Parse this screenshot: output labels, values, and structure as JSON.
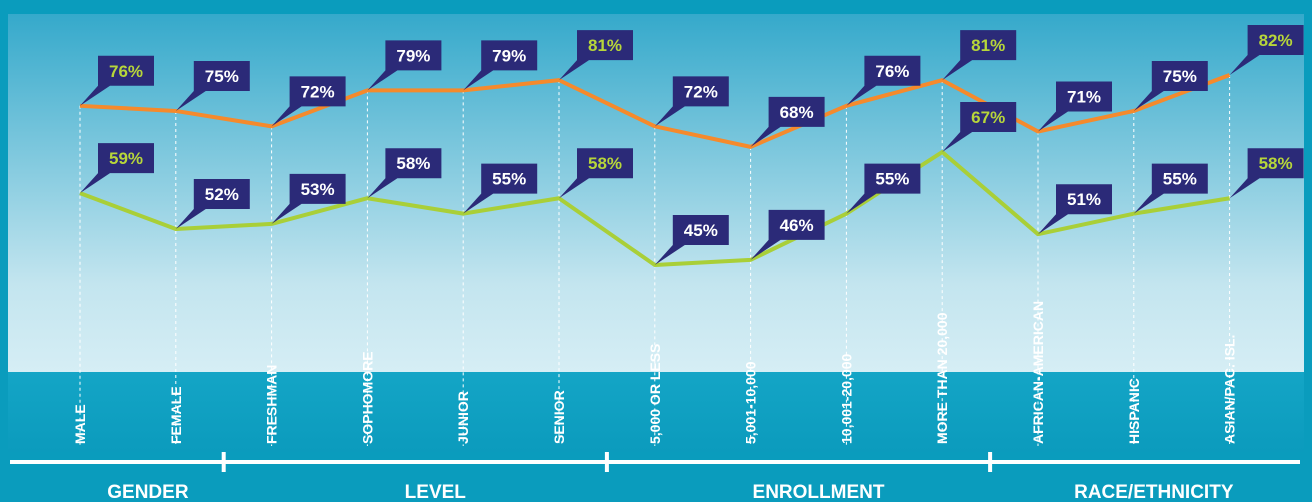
{
  "chart_data": {
    "type": "line",
    "groups": [
      {
        "name": "GENDER",
        "categories": [
          "MALE",
          "FEMALE"
        ]
      },
      {
        "name": "LEVEL",
        "categories": [
          "FRESHMAN",
          "SOPHOMORE",
          "JUNIOR",
          "SENIOR"
        ]
      },
      {
        "name": "ENROLLMENT",
        "categories": [
          "5,000 OR LESS",
          "5,001-10,000",
          "10,001-20,000",
          "MORE THAN 20,000"
        ]
      },
      {
        "name": "RACE/ETHNICITY",
        "categories": [
          "AFRICAN-AMERICAN",
          "HISPANIC",
          "ASIAN/PAC. ISL."
        ]
      }
    ],
    "series": [
      {
        "color": "#f58a2c",
        "values": [
          76,
          75,
          72,
          79,
          79,
          81,
          72,
          68,
          76,
          81,
          71,
          75,
          82
        ],
        "value_labels": [
          "76%",
          "75%",
          "72%",
          "79%",
          "79%",
          "81%",
          "72%",
          "68%",
          "76%",
          "81%",
          "71%",
          "75%",
          "82%"
        ]
      },
      {
        "color": "#a9cf38",
        "values": [
          59,
          52,
          53,
          58,
          55,
          58,
          45,
          46,
          55,
          67,
          51,
          55,
          58
        ],
        "value_labels": [
          "59%",
          "52%",
          "53%",
          "58%",
          "55%",
          "58%",
          "45%",
          "46%",
          "55%",
          "67%",
          "51%",
          "55%",
          "58%"
        ]
      }
    ]
  }
}
